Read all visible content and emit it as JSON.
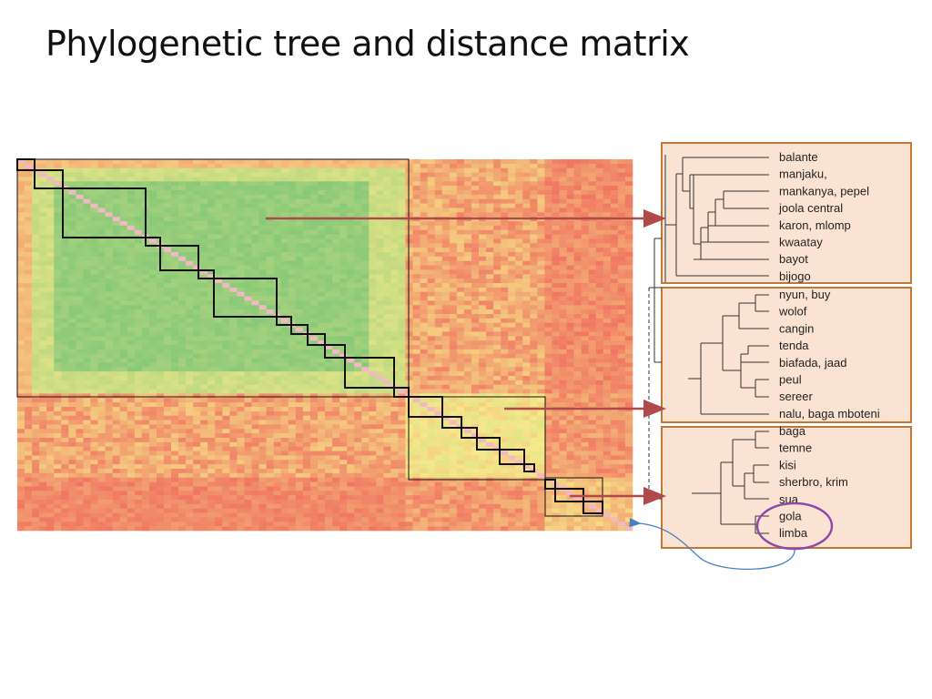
{
  "title": "Phylogenetic tree and distance matrix",
  "colors": {
    "similar": "#7cc576",
    "mid": "#f5e98a",
    "distant": "#f07060",
    "diagonal": "#f3b8c6",
    "panel_fill": "#fbe3d3",
    "panel_border": "#c0783a",
    "arrow": "#b0494a",
    "highlight_ellipse": "#8d4aa8",
    "loop_arrow": "#4a7fc1"
  },
  "panels": [
    {
      "id": "panel-1",
      "leaves": [
        "balante",
        "manjaku,",
        "mankanya, pepel",
        "joola central",
        "karon, mlomp",
        "kwaatay",
        "bayot",
        "bijogo"
      ]
    },
    {
      "id": "panel-2",
      "leaves": [
        "nyun, buy",
        "wolof",
        "cangin",
        "tenda",
        "biafada, jaad",
        "peul",
        "sereer",
        "nalu, baga mboteni"
      ]
    },
    {
      "id": "panel-3",
      "leaves": [
        "baga",
        "temne",
        "kisi",
        "sherbro, krim",
        "sua",
        "gola",
        "limba"
      ]
    }
  ],
  "highlighted_leaf": "gola"
}
